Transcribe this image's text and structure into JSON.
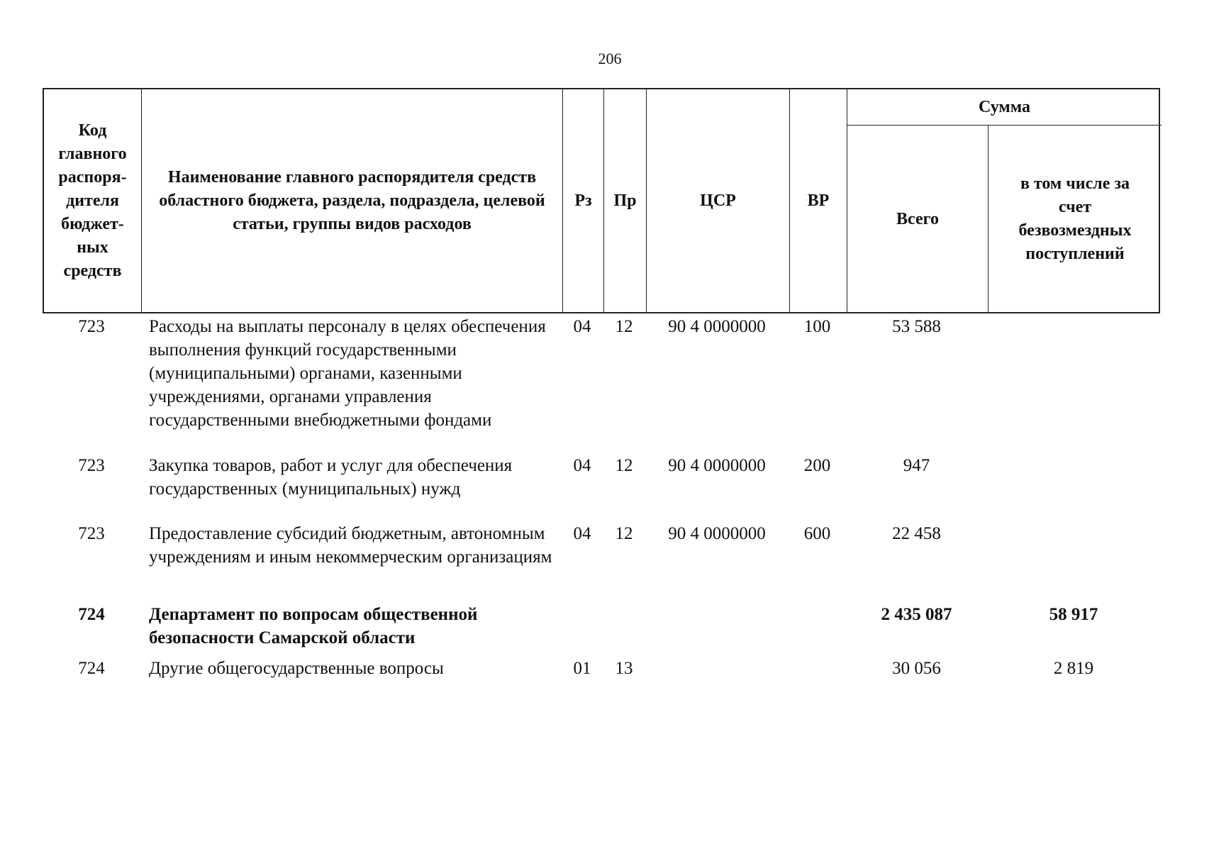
{
  "page_number": "206",
  "header": {
    "code": "Код главного распоря-дителя бюджет-ных средств",
    "name": "Наименование главного распорядителя средств областного бюджета, раздела, подраздела, целевой статьи, группы видов расходов",
    "rz": "Рз",
    "pr": "Пр",
    "csr": "ЦСР",
    "vr": "ВР",
    "sum": "Сумма",
    "total": "Всего",
    "incl": "в том числе за счет безвозмездных поступлений"
  },
  "rows": [
    {
      "code": "723",
      "name": "Расходы на выплаты персоналу в целях обеспечения выполнения функций государственными (муниципальными) органами, казенными учреждениями, органами управления государственными внебюджетными фондами",
      "rz": "04",
      "pr": "12",
      "csr": "90 4 0000000",
      "vr": "100",
      "total": "53 588",
      "incl": ""
    },
    {
      "code": "723",
      "name": "Закупка товаров, работ и услуг для обеспечения государственных (муниципальных) нужд",
      "rz": "04",
      "pr": "12",
      "csr": "90 4 0000000",
      "vr": "200",
      "total": "947",
      "incl": ""
    },
    {
      "code": "723",
      "name": "Предоставление субсидий бюджетным, автономным учреждениям и иным некоммерческим организациям",
      "rz": "04",
      "pr": "12",
      "csr": "90 4 0000000",
      "vr": "600",
      "total": "22 458",
      "incl": ""
    },
    {
      "code": "724",
      "name": "Департамент по вопросам общественной безопасности Самарской области",
      "rz": "",
      "pr": "",
      "csr": "",
      "vr": "",
      "total": "2 435 087",
      "incl": "58 917",
      "bold": true
    },
    {
      "code": "724",
      "name": "Другие общегосударственные вопросы",
      "rz": "01",
      "pr": "13",
      "csr": "",
      "vr": "",
      "total": "30 056",
      "incl": "2 819"
    }
  ]
}
